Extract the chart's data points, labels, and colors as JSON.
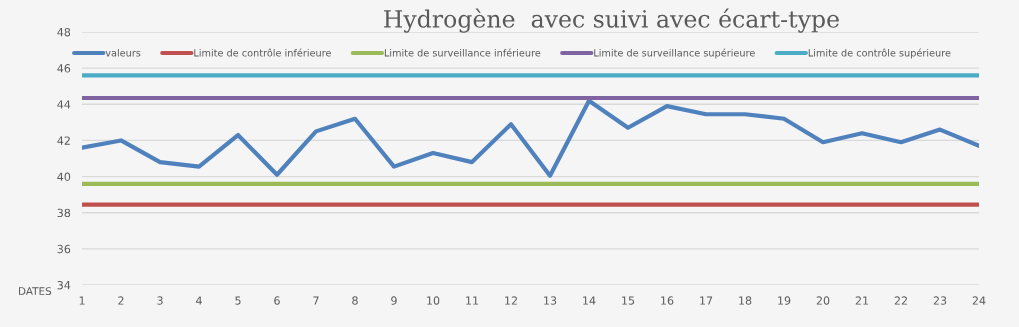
{
  "chart_data": {
    "type": "line",
    "title": "Hydrogène  avec suivi avec écart-type",
    "xlabel": "DATES",
    "categories": [
      "1",
      "2",
      "3",
      "4",
      "5",
      "6",
      "7",
      "8",
      "9",
      "10",
      "11",
      "12",
      "13",
      "14",
      "15",
      "16",
      "17",
      "18",
      "19",
      "20",
      "21",
      "22",
      "23",
      "24"
    ],
    "series": [
      {
        "name": "valeurs",
        "color": "#4f81bd",
        "values": [
          41.6,
          42.0,
          40.8,
          40.55,
          42.3,
          40.1,
          42.5,
          43.2,
          40.55,
          41.3,
          40.8,
          42.9,
          40.05,
          44.2,
          42.7,
          43.9,
          43.45,
          43.45,
          43.2,
          41.9,
          42.4,
          41.9,
          42.6,
          41.7
        ]
      },
      {
        "name": "Limite de contrôle inférieure",
        "color": "#c0504d",
        "values": [
          38.45,
          38.45,
          38.45,
          38.45,
          38.45,
          38.45,
          38.45,
          38.45,
          38.45,
          38.45,
          38.45,
          38.45,
          38.45,
          38.45,
          38.45,
          38.45,
          38.45,
          38.45,
          38.45,
          38.45,
          38.45,
          38.45,
          38.45,
          38.45
        ]
      },
      {
        "name": "Limite de surveillance inférieure",
        "color": "#9bbb59",
        "values": [
          39.6,
          39.6,
          39.6,
          39.6,
          39.6,
          39.6,
          39.6,
          39.6,
          39.6,
          39.6,
          39.6,
          39.6,
          39.6,
          39.6,
          39.6,
          39.6,
          39.6,
          39.6,
          39.6,
          39.6,
          39.6,
          39.6,
          39.6,
          39.6
        ]
      },
      {
        "name": "Limite de surveillance supérieure",
        "color": "#8064a2",
        "values": [
          44.35,
          44.35,
          44.35,
          44.35,
          44.35,
          44.35,
          44.35,
          44.35,
          44.35,
          44.35,
          44.35,
          44.35,
          44.35,
          44.35,
          44.35,
          44.35,
          44.35,
          44.35,
          44.35,
          44.35,
          44.35,
          44.35,
          44.35,
          44.35
        ]
      },
      {
        "name": "Limite de contrôle supérieure",
        "color": "#4bacc6",
        "values": [
          45.6,
          45.6,
          45.6,
          45.6,
          45.6,
          45.6,
          45.6,
          45.6,
          45.6,
          45.6,
          45.6,
          45.6,
          45.6,
          45.6,
          45.6,
          45.6,
          45.6,
          45.6,
          45.6,
          45.6,
          45.6,
          45.6,
          45.6,
          45.6
        ]
      }
    ],
    "ylim": [
      34,
      48
    ],
    "yticks": [
      34,
      36,
      38,
      40,
      42,
      44,
      46,
      48
    ],
    "grid": "y",
    "legend": "top",
    "marker": "none",
    "line_style": "solid"
  }
}
